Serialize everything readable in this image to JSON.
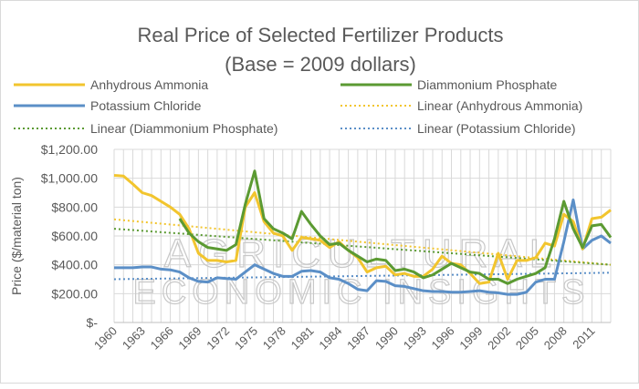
{
  "chart_data": {
    "type": "line",
    "title": "Real Price of Selected Fertilizer Products",
    "subtitle": "(Base = 2009 dollars)",
    "ylabel": "Price ($/material ton)",
    "xlabel": "",
    "ylim": [
      0,
      1200
    ],
    "yticks": [
      "$-",
      "$200.00",
      "$400.00",
      "$600.00",
      "$800.00",
      "$1,000.00",
      "$1,200.00"
    ],
    "xticks": [
      "1960",
      "1963",
      "1966",
      "1969",
      "1972",
      "1975",
      "1978",
      "1981",
      "1984",
      "1987",
      "1990",
      "1993",
      "1996",
      "1999",
      "2002",
      "2005",
      "2008",
      "2011"
    ],
    "x_start": 1960,
    "x_end": 2013,
    "grid": true,
    "legend_position": "top",
    "watermark": [
      "AGRICULTURAL",
      "ECONOMIC INSIGHTS"
    ],
    "series": [
      {
        "name": "Anhydrous Ammonia",
        "color": "#f2c52e",
        "style": "solid",
        "start": 1960,
        "values": [
          1020,
          1015,
          960,
          900,
          880,
          840,
          800,
          750,
          650,
          480,
          430,
          430,
          420,
          430,
          800,
          900,
          700,
          620,
          600,
          500,
          590,
          580,
          570,
          520,
          560,
          500,
          450,
          350,
          380,
          390,
          330,
          340,
          320,
          320,
          370,
          460,
          410,
          400,
          340,
          270,
          280,
          480,
          300,
          430,
          430,
          450,
          550,
          530,
          750,
          700,
          510,
          720,
          730,
          780
        ]
      },
      {
        "name": "Diammonium Phosphate",
        "color": "#5b9a32",
        "style": "solid",
        "start": 1967,
        "values": [
          720,
          620,
          560,
          520,
          510,
          500,
          540,
          820,
          1050,
          720,
          650,
          620,
          580,
          770,
          680,
          600,
          540,
          550,
          500,
          460,
          420,
          440,
          430,
          360,
          370,
          350,
          310,
          330,
          370,
          410,
          380,
          350,
          340,
          300,
          300,
          270,
          300,
          320,
          340,
          380,
          580,
          840,
          650,
          520,
          670,
          680,
          590
        ]
      },
      {
        "name": "Potassium Chloride",
        "color": "#5b8fc7",
        "style": "solid",
        "start": 1960,
        "values": [
          380,
          380,
          380,
          385,
          385,
          370,
          365,
          350,
          310,
          285,
          280,
          310,
          305,
          300,
          350,
          400,
          370,
          340,
          320,
          320,
          355,
          360,
          350,
          310,
          300,
          270,
          230,
          220,
          290,
          285,
          255,
          250,
          235,
          220,
          215,
          215,
          210,
          210,
          215,
          220,
          210,
          205,
          195,
          195,
          210,
          280,
          300,
          300,
          560,
          850,
          510,
          570,
          600,
          550
        ]
      },
      {
        "name": "Linear (Anhydrous Ammonia)",
        "color": "#f2c52e",
        "style": "dotted",
        "start": 1960,
        "end": 2013,
        "values": [
          715,
          400
        ]
      },
      {
        "name": "Linear (Diammonium Phosphate)",
        "color": "#5b9a32",
        "style": "dotted",
        "start": 1960,
        "end": 2013,
        "values": [
          650,
          400
        ]
      },
      {
        "name": "Linear (Potassium Chloride)",
        "color": "#5b8fc7",
        "style": "dotted",
        "start": 1960,
        "end": 2013,
        "values": [
          300,
          345
        ]
      }
    ]
  }
}
